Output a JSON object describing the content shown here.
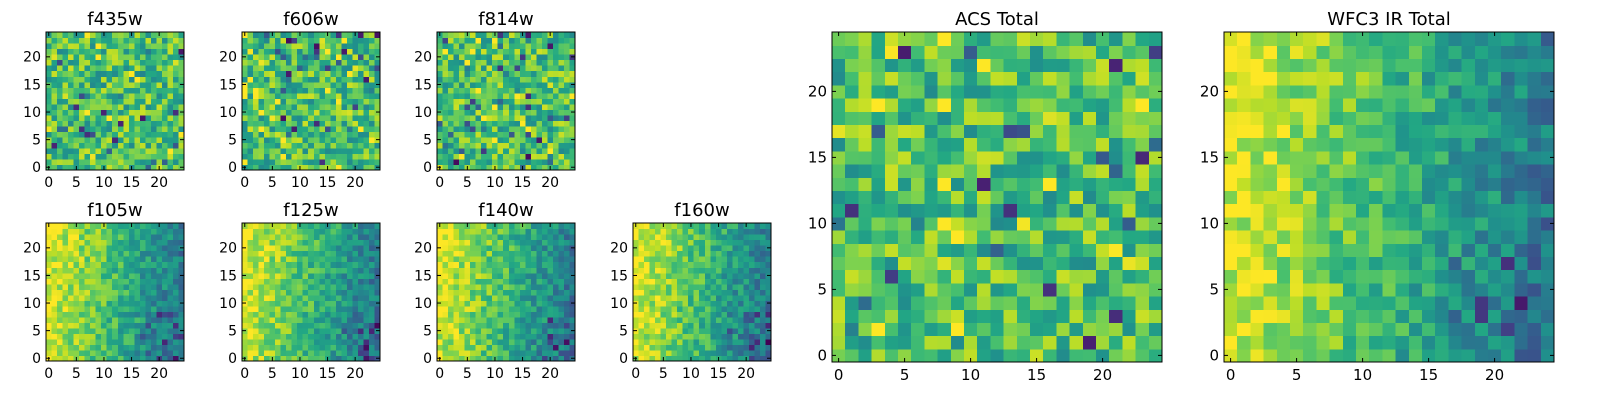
{
  "chart_data": [
    {
      "type": "heatmap",
      "title": "f435w",
      "colormap": "viridis",
      "xticks": [
        "0",
        "5",
        "10",
        "15",
        "20"
      ],
      "yticks": [
        "0",
        "5",
        "10",
        "15",
        "20"
      ],
      "xlim": [
        0,
        25
      ],
      "ylim": [
        0,
        25
      ],
      "grid": false,
      "trend": "uniform-noise",
      "seed": 11
    },
    {
      "type": "heatmap",
      "title": "f606w",
      "colormap": "viridis",
      "xticks": [
        "0",
        "5",
        "10",
        "15",
        "20"
      ],
      "yticks": [
        "0",
        "5",
        "10",
        "15",
        "20"
      ],
      "xlim": [
        0,
        25
      ],
      "ylim": [
        0,
        25
      ],
      "grid": false,
      "trend": "uniform-noise",
      "seed": 23
    },
    {
      "type": "heatmap",
      "title": "f814w",
      "colormap": "viridis",
      "xticks": [
        "0",
        "5",
        "10",
        "15",
        "20"
      ],
      "yticks": [
        "0",
        "5",
        "10",
        "15",
        "20"
      ],
      "xlim": [
        0,
        25
      ],
      "ylim": [
        0,
        25
      ],
      "grid": false,
      "trend": "uniform-noise",
      "seed": 37
    },
    {
      "type": "heatmap",
      "title": "f105w",
      "colormap": "viridis",
      "xticks": [
        "0",
        "5",
        "10",
        "15",
        "20"
      ],
      "yticks": [
        "0",
        "5",
        "10",
        "15",
        "20"
      ],
      "xlim": [
        0,
        25
      ],
      "ylim": [
        0,
        25
      ],
      "grid": false,
      "trend": "bright-left",
      "seed": 41
    },
    {
      "type": "heatmap",
      "title": "f125w",
      "colormap": "viridis",
      "xticks": [
        "0",
        "5",
        "10",
        "15",
        "20"
      ],
      "yticks": [
        "0",
        "5",
        "10",
        "15",
        "20"
      ],
      "xlim": [
        0,
        25
      ],
      "ylim": [
        0,
        25
      ],
      "grid": false,
      "trend": "bright-left",
      "seed": 53
    },
    {
      "type": "heatmap",
      "title": "f140w",
      "colormap": "viridis",
      "xticks": [
        "0",
        "5",
        "10",
        "15",
        "20"
      ],
      "yticks": [
        "0",
        "5",
        "10",
        "15",
        "20"
      ],
      "xlim": [
        0,
        25
      ],
      "ylim": [
        0,
        25
      ],
      "grid": false,
      "trend": "bright-left",
      "seed": 67
    },
    {
      "type": "heatmap",
      "title": "f160w",
      "colormap": "viridis",
      "xticks": [
        "0",
        "5",
        "10",
        "15",
        "20"
      ],
      "yticks": [
        "0",
        "5",
        "10",
        "15",
        "20"
      ],
      "xlim": [
        0,
        25
      ],
      "ylim": [
        0,
        25
      ],
      "grid": false,
      "trend": "bright-left",
      "seed": 79
    },
    {
      "type": "heatmap",
      "title": "ACS Total",
      "colormap": "viridis",
      "xticks": [
        "0",
        "5",
        "10",
        "15",
        "20"
      ],
      "yticks": [
        "0",
        "5",
        "10",
        "15",
        "20"
      ],
      "xlim": [
        0,
        25
      ],
      "ylim": [
        0,
        25
      ],
      "grid": false,
      "trend": "uniform-noise",
      "seed": 83
    },
    {
      "type": "heatmap",
      "title": "WFC3 IR Total",
      "colormap": "viridis",
      "xticks": [
        "0",
        "5",
        "10",
        "15",
        "20"
      ],
      "yticks": [
        "0",
        "5",
        "10",
        "15",
        "20"
      ],
      "xlim": [
        0,
        25
      ],
      "ylim": [
        0,
        25
      ],
      "grid": false,
      "trend": "bright-left",
      "seed": 97
    }
  ]
}
